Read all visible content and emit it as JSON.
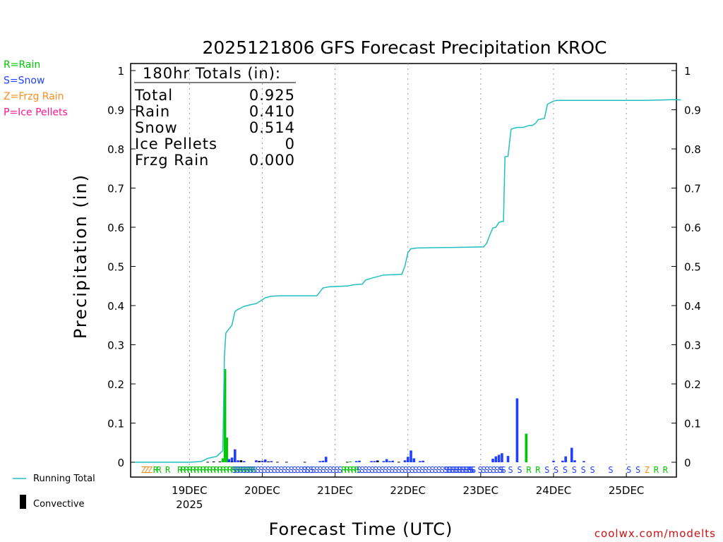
{
  "chart_data": {
    "type": "bar",
    "title": "2025121806 GFS Forecast Precipitation KROC",
    "xlabel": "Forecast Time (UTC)",
    "ylabel": "Precipitation (in)",
    "ylim": [
      0,
      1
    ],
    "yticks": [
      "0",
      "0.1",
      "0.2",
      "0.3",
      "0.4",
      "0.5",
      "0.6",
      "0.7",
      "0.8",
      "0.9",
      "1"
    ],
    "x_units": "forecast hours from 2025-12-18 06Z",
    "xlim": [
      0,
      180
    ],
    "day_ticks": [
      {
        "hour": 18,
        "label": "19DEC",
        "sublabel": "2025"
      },
      {
        "hour": 42,
        "label": "20DEC",
        "sublabel": ""
      },
      {
        "hour": 66,
        "label": "21DEC",
        "sublabel": ""
      },
      {
        "hour": 90,
        "label": "22DEC",
        "sublabel": ""
      },
      {
        "hour": 114,
        "label": "23DEC",
        "sublabel": ""
      },
      {
        "hour": 138,
        "label": "24DEC",
        "sublabel": ""
      },
      {
        "hour": 162,
        "label": "25DEC",
        "sublabel": ""
      }
    ],
    "running_total": {
      "name": "Running Total",
      "color": "#20c0c0",
      "x": [
        0,
        18,
        22,
        24,
        27,
        29,
        29.5,
        30,
        31,
        32,
        33,
        34,
        36,
        38,
        40,
        42,
        43,
        45,
        48,
        54,
        60,
        61,
        62,
        64,
        70,
        72,
        75,
        76,
        78,
        82,
        88,
        89,
        90,
        91,
        93,
        100,
        110,
        115,
        116,
        117,
        118,
        119,
        120,
        121,
        121.5,
        122,
        123,
        124,
        125,
        126,
        128,
        130,
        131,
        132,
        133,
        135,
        136,
        137,
        138,
        139,
        140,
        144,
        150,
        156,
        162,
        168,
        174,
        178,
        180
      ],
      "y": [
        0,
        0,
        0.002,
        0.01,
        0.015,
        0.03,
        0.27,
        0.33,
        0.34,
        0.35,
        0.385,
        0.39,
        0.398,
        0.402,
        0.405,
        0.415,
        0.42,
        0.424,
        0.425,
        0.425,
        0.425,
        0.435,
        0.445,
        0.448,
        0.45,
        0.453,
        0.455,
        0.465,
        0.47,
        0.478,
        0.48,
        0.5,
        0.535,
        0.545,
        0.547,
        0.548,
        0.549,
        0.55,
        0.56,
        0.58,
        0.598,
        0.6,
        0.612,
        0.615,
        0.615,
        0.78,
        0.781,
        0.85,
        0.853,
        0.855,
        0.855,
        0.86,
        0.86,
        0.865,
        0.875,
        0.878,
        0.914,
        0.918,
        0.922,
        0.924,
        0.924,
        0.924,
        0.924,
        0.924,
        0.924,
        0.924,
        0.925,
        0.926,
        0.925
      ]
    },
    "series": [
      {
        "name": "Rain",
        "color": "#00c800",
        "x": [
          29,
          29.7,
          30.3,
          71,
          129
        ],
        "values": [
          0.01,
          0.238,
          0.063,
          0.002,
          0.073
        ]
      },
      {
        "name": "Snow",
        "color": "#2040ff",
        "x": [
          31,
          32,
          33,
          34,
          36,
          40,
          41,
          42,
          43,
          45,
          61,
          62,
          63,
          73,
          74,
          78,
          79,
          80,
          82,
          83,
          84,
          85,
          89,
          90,
          91,
          92,
          94,
          95,
          118,
          119,
          120,
          121,
          123,
          126,
          138,
          141,
          142,
          144,
          145,
          148
        ],
        "values": [
          0.008,
          0.012,
          0.033,
          0.005,
          0.003,
          0.005,
          0.003,
          0.004,
          0.007,
          0.003,
          0.003,
          0.004,
          0.014,
          0.003,
          0.004,
          0.003,
          0.003,
          0.005,
          0.003,
          0.008,
          0.003,
          0.004,
          0.005,
          0.014,
          0.03,
          0.01,
          0.003,
          0.004,
          0.009,
          0.015,
          0.019,
          0.023,
          0.016,
          0.163,
          0.004,
          0.004,
          0.015,
          0.037,
          0.005,
          0.003
        ]
      },
      {
        "name": "Convective",
        "color": "#000000",
        "x": [
          24,
          26,
          28,
          32,
          35,
          41,
          44,
          47,
          50,
          56,
          70,
          80,
          87
        ],
        "values": [
          0.001,
          0.002,
          0.002,
          0.002,
          0.005,
          0.003,
          0.002,
          0.001,
          0.001,
          0.001,
          0.001,
          0.003,
          0.001
        ]
      }
    ],
    "ptype_strip": [
      {
        "hour": 2,
        "text": "ZZZ",
        "kind": "Z"
      },
      {
        "hour": 6,
        "text": "RR",
        "kind": "R"
      },
      {
        "hour": 10,
        "text": "R",
        "kind": "R"
      },
      {
        "hour": 14,
        "text": "RRRRRRRRRRRRRRRRRRRRRRR",
        "kind": "R"
      },
      {
        "hour": 32,
        "text": "SSSSSSSSSSSSSSSSSSSSSSSS",
        "kind": "S"
      },
      {
        "hour": 55,
        "text": "SS",
        "kind": "S"
      },
      {
        "hour": 58,
        "text": "SSSSSSSSS",
        "kind": "S"
      },
      {
        "hour": 68,
        "text": "RRRRR",
        "kind": "R"
      },
      {
        "hour": 73,
        "text": "SSSSSSSSSSSSSSSSSSSSSSSSSSSSSSSSSSS",
        "kind": "S"
      },
      {
        "hour": 102,
        "text": "SSSSSSSSS",
        "kind": "S"
      },
      {
        "hour": 110,
        "text": "S",
        "kind": "S"
      },
      {
        "hour": 113,
        "text": "SSSSSSSS",
        "kind": "S"
      },
      {
        "hour": 120,
        "text": "S",
        "kind": "S"
      },
      {
        "hour": 123,
        "text": "S",
        "kind": "S"
      },
      {
        "hour": 126,
        "text": "S",
        "kind": "S"
      },
      {
        "hour": 129,
        "text": "R",
        "kind": "R"
      },
      {
        "hour": 132,
        "text": "R",
        "kind": "R"
      },
      {
        "hour": 135,
        "text": "S",
        "kind": "S"
      },
      {
        "hour": 138,
        "text": "S",
        "kind": "S"
      },
      {
        "hour": 141,
        "text": "S",
        "kind": "S"
      },
      {
        "hour": 144,
        "text": "S",
        "kind": "S"
      },
      {
        "hour": 147,
        "text": "S",
        "kind": "S"
      },
      {
        "hour": 150,
        "text": "S",
        "kind": "S"
      },
      {
        "hour": 156,
        "text": "S",
        "kind": "S"
      },
      {
        "hour": 162,
        "text": "S",
        "kind": "S"
      },
      {
        "hour": 165,
        "text": "S",
        "kind": "S"
      },
      {
        "hour": 168,
        "text": "Z",
        "kind": "Z"
      },
      {
        "hour": 171,
        "text": "R",
        "kind": "R"
      },
      {
        "hour": 174,
        "text": "R",
        "kind": "R"
      }
    ],
    "totals_box": {
      "title": "180hr Totals (in):",
      "rows": [
        {
          "label": "Total",
          "value": "0.925"
        },
        {
          "label": "Rain",
          "value": "0.410"
        },
        {
          "label": "Snow",
          "value": "0.514"
        },
        {
          "label": "Ice Pellets",
          "value": "0"
        },
        {
          "label": "Frzg Rain",
          "value": "0.000"
        }
      ]
    },
    "ptype_legend": [
      {
        "text": "R=Rain",
        "kind": "R"
      },
      {
        "text": "S=Snow",
        "kind": "S"
      },
      {
        "text": "Z=Frzg Rain",
        "kind": "Z"
      },
      {
        "text": "P=Ice Pellets",
        "kind": "P"
      }
    ],
    "line_legend": [
      {
        "text": "Running Total",
        "kind": "line"
      },
      {
        "text": "Convective",
        "kind": "bar"
      }
    ],
    "credit": "coolwx.com/modelts"
  },
  "colors": {
    "R": "#00c800",
    "S": "#2040ff",
    "Z": "#ff8c1a",
    "P": "#ff1493",
    "line": "#20c0c0",
    "conv": "#000000",
    "credit": "#d01010",
    "grid": "#9a9a9a"
  }
}
